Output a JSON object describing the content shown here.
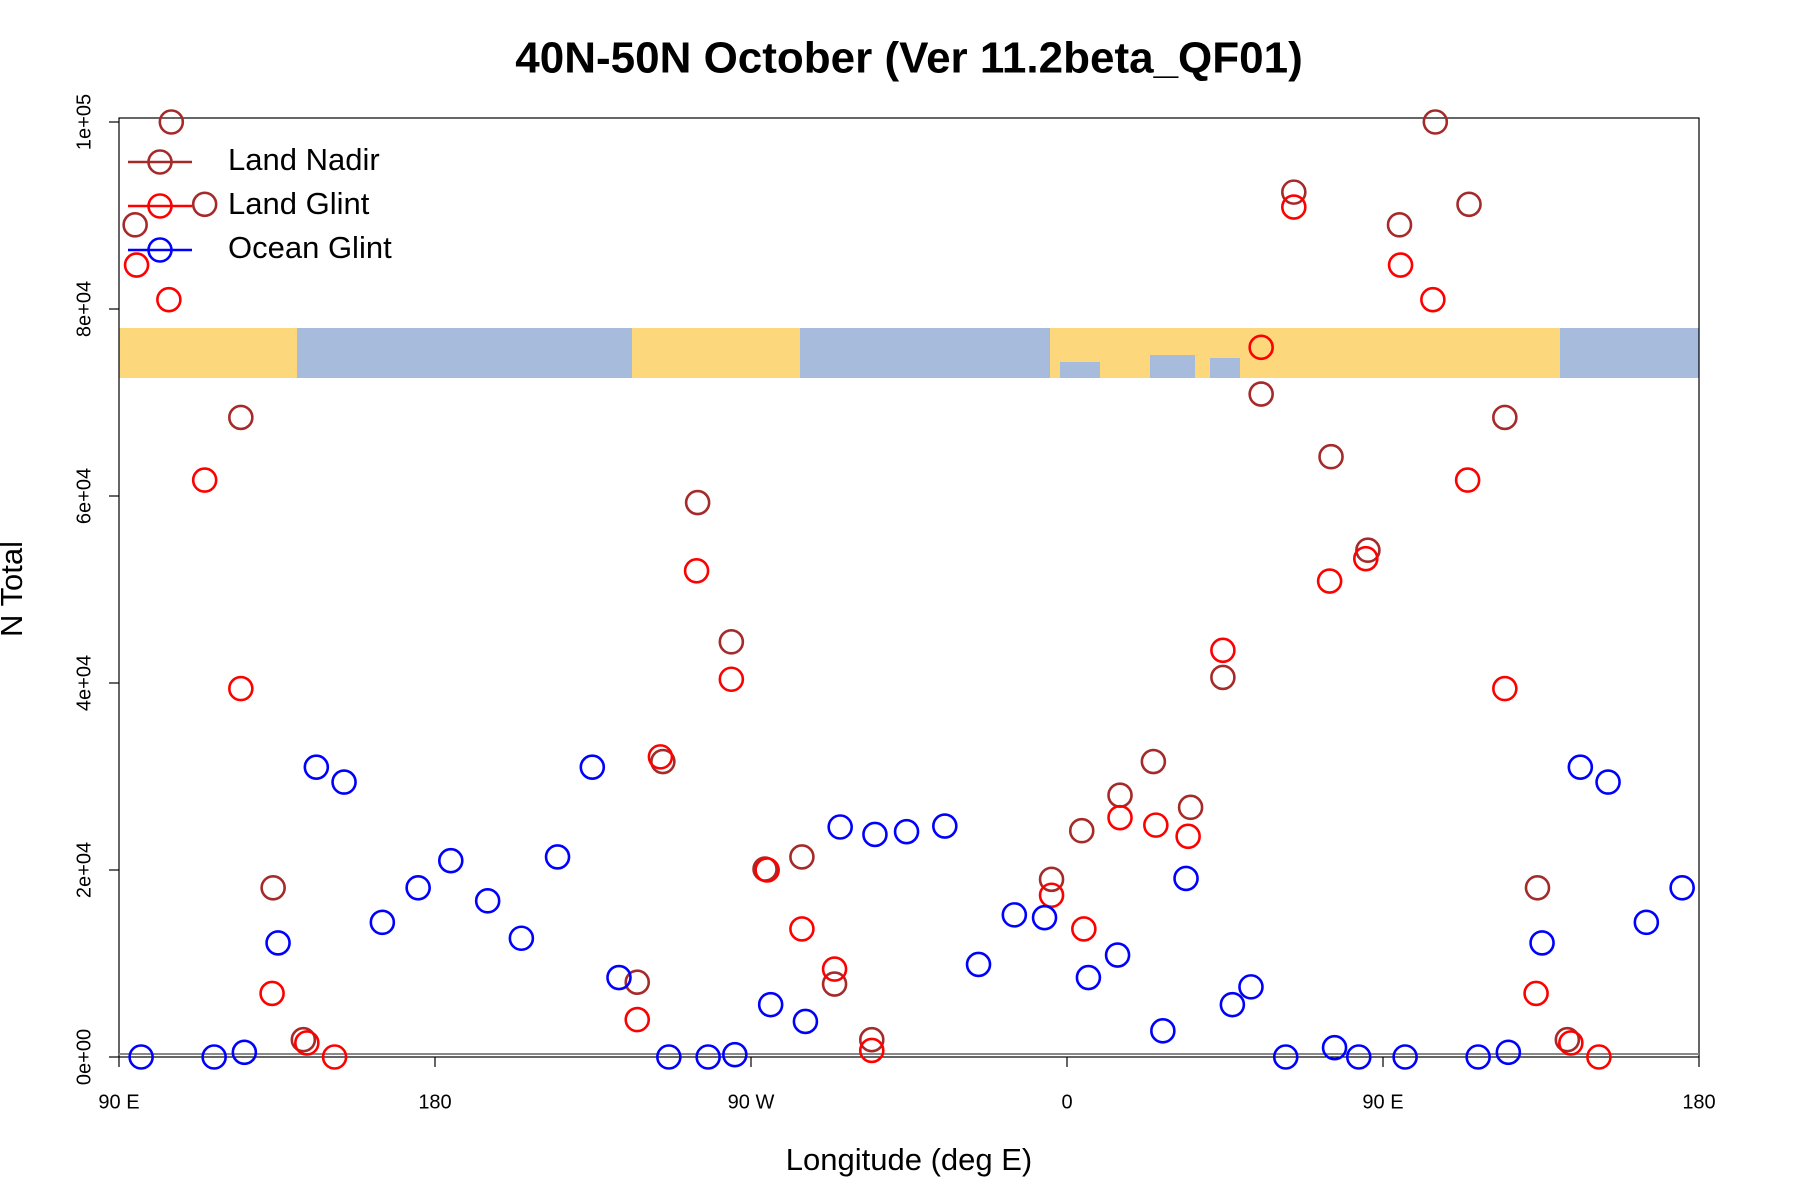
{
  "chart_data": {
    "type": "scatter",
    "title": "40N-50N October (Ver 11.2beta_QF01)",
    "x_label": "Longitude (deg E)",
    "y_label": "N Total",
    "xlim": [
      90,
      540
    ],
    "ylim": [
      0,
      100000
    ],
    "xticks": [
      {
        "value": 90,
        "label": "90 E"
      },
      180,
      {
        "value": 270,
        "label": "90 W"
      },
      {
        "value": 360,
        "label": "0"
      },
      {
        "value": 450,
        "label": "90 E"
      },
      {
        "value": 540,
        "label": "180"
      }
    ],
    "yticks": [
      {
        "value": 0,
        "label": "0e+00"
      },
      {
        "value": 20000,
        "label": "2e+04"
      },
      {
        "value": 40000,
        "label": "4e+04"
      },
      {
        "value": 60000,
        "label": "6e+04"
      },
      {
        "value": 80000,
        "label": "8e+04"
      },
      {
        "value": 100000,
        "label": "1e+05"
      }
    ],
    "legend_position": "top-left",
    "series": [
      {
        "name": "Land Nadir",
        "color": "#A52A2A",
        "x": [
          94.6,
          104.9,
          114.4,
          124.7,
          133.9,
          142.5,
          237.6,
          244.9,
          254.8,
          264.4,
          274.0,
          284.5,
          293.8,
          304.4,
          355.6,
          364.2,
          375.1,
          384.6,
          395.2,
          404.4,
          415.3,
          424.6,
          435.2,
          445.7,
          454.7,
          464.9,
          474.5,
          484.7,
          494.0,
          502.5
        ],
        "values": [
          89000,
          100000,
          91200,
          68400,
          18100,
          1850,
          8000,
          31600,
          59300,
          44400,
          20100,
          21400,
          7800,
          1850,
          19000,
          24200,
          28000,
          31600,
          26700,
          40600,
          70900,
          92500,
          64200,
          54200,
          89000,
          100000,
          91200,
          68400,
          18100,
          1850
        ]
      },
      {
        "name": "Land Glint",
        "color": "#FF0000",
        "x": [
          95.0,
          104.2,
          114.4,
          124.7,
          133.6,
          143.5,
          151.4,
          237.6,
          244.2,
          254.5,
          264.4,
          274.6,
          284.5,
          293.8,
          304.4,
          355.6,
          364.8,
          375.1,
          385.3,
          394.5,
          404.4,
          415.3,
          424.6,
          434.8,
          445.1,
          455.0,
          464.2,
          474.1,
          484.7,
          493.6,
          503.5,
          511.5
        ],
        "values": [
          84700,
          81000,
          61700,
          39400,
          6800,
          1500,
          0,
          4000,
          32100,
          52000,
          40400,
          20000,
          13700,
          9400,
          700,
          17300,
          13700,
          25600,
          24800,
          23600,
          43500,
          75900,
          90900,
          50900,
          53300,
          84700,
          81000,
          61700,
          39400,
          6800,
          1500,
          0
        ]
      },
      {
        "name": "Ocean Glint",
        "color": "#0000FF",
        "x": [
          96.3,
          117.1,
          125.7,
          135.3,
          146.2,
          154.1,
          165.0,
          175.2,
          184.5,
          195.0,
          204.6,
          214.9,
          224.8,
          232.4,
          246.6,
          257.8,
          265.4,
          275.6,
          285.5,
          295.4,
          305.3,
          314.3,
          325.2,
          334.8,
          345.0,
          353.6,
          366.1,
          374.4,
          387.3,
          393.9,
          407.1,
          412.4,
          422.3,
          436.2,
          443.1,
          456.3,
          477.1,
          485.7,
          495.3,
          506.2,
          514.1,
          525.0,
          535.2
        ],
        "values": [
          0,
          0,
          500,
          12200,
          31000,
          29400,
          14400,
          18100,
          21000,
          16700,
          12700,
          21400,
          31000,
          8500,
          0,
          0,
          250,
          5600,
          3800,
          24600,
          23800,
          24100,
          24700,
          9900,
          15200,
          14900,
          8500,
          10900,
          2800,
          19100,
          5600,
          7500,
          0,
          1000,
          0,
          0,
          0,
          500,
          12200,
          31000,
          29400,
          14400,
          18100
        ]
      }
    ]
  }
}
